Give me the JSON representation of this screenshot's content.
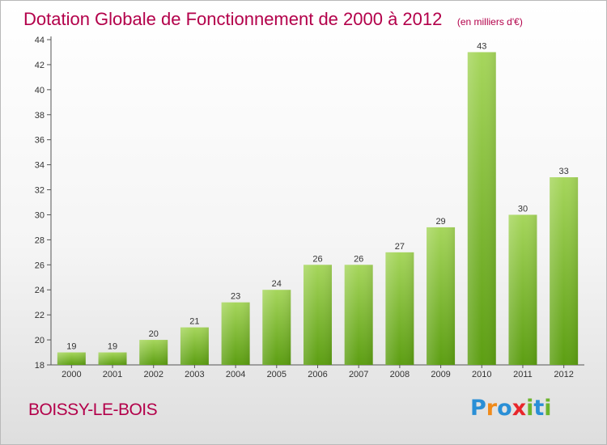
{
  "title": {
    "main": "Dotation Globale de Fonctionnement de 2000 à 2012",
    "unit": "(en milliers d'€)"
  },
  "commune": "BOISSY-LE-BOIS",
  "logo": {
    "letters": [
      "P",
      "r",
      "o",
      "x",
      "i",
      "t",
      "i"
    ],
    "colors": [
      "#2a8fd6",
      "#f08a1a",
      "#2a8fd6",
      "#e8262b",
      "#6cb52d",
      "#2a8fd6",
      "#6cb52d"
    ]
  },
  "chart_data": {
    "type": "bar",
    "categories": [
      "2000",
      "2001",
      "2002",
      "2003",
      "2004",
      "2005",
      "2006",
      "2007",
      "2008",
      "2009",
      "2010",
      "2011",
      "2012"
    ],
    "values": [
      19,
      19,
      20,
      21,
      23,
      24,
      26,
      26,
      27,
      29,
      43,
      30,
      33
    ],
    "title": "Dotation Globale de Fonctionnement de 2000 à 2012",
    "xlabel": "",
    "ylabel": "",
    "ylim": [
      18,
      44
    ],
    "yticks": [
      18,
      20,
      22,
      24,
      26,
      28,
      30,
      32,
      34,
      36,
      38,
      40,
      42,
      44
    ],
    "grid": false,
    "bar_color_top": "#a6d65c",
    "bar_color_bottom": "#5c9e12"
  }
}
